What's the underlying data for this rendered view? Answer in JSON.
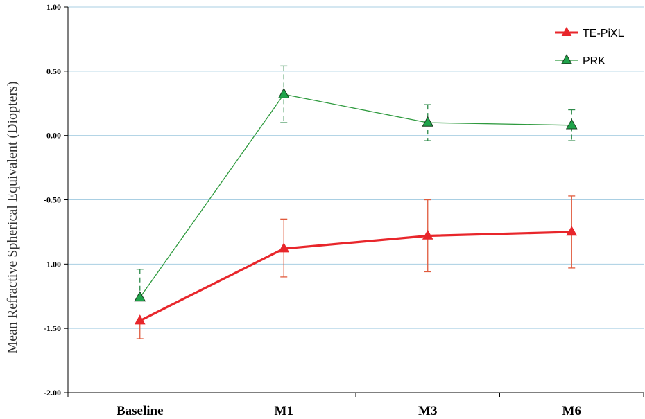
{
  "chart_data": {
    "type": "line",
    "categories": [
      "Baseline",
      "M1",
      "M3",
      "M6"
    ],
    "ylabel": "Mean Refractive Spherical Equivalent (Diopters)",
    "xlabel": "",
    "ylim": [
      -2.0,
      1.0
    ],
    "yticks": [
      1.0,
      0.5,
      0.0,
      -0.5,
      -1.0,
      -1.5,
      -2.0
    ],
    "ytick_labels": [
      "1.00",
      "0.50",
      "0.00",
      "-0.50",
      "-1.00",
      "-1.50",
      "-2.00"
    ],
    "grid": "horizontal",
    "legend_position": "top-right",
    "series": [
      {
        "name": "TE-PiXL",
        "color": "#e8262b",
        "marker": "triangle",
        "error_style": "solid",
        "values": [
          -1.44,
          -0.88,
          -0.78,
          -0.75
        ],
        "err_low": [
          -1.58,
          -1.1,
          -1.06,
          -1.03
        ],
        "err_high": [
          -1.44,
          -0.65,
          -0.5,
          -0.47
        ]
      },
      {
        "name": "PRK",
        "color": "#1fa34a",
        "line_color": "#2e9a3e",
        "marker": "triangle",
        "error_style": "dashed",
        "values": [
          -1.26,
          0.32,
          0.1,
          0.08
        ],
        "err_low": [
          -1.26,
          0.1,
          -0.04,
          -0.04
        ],
        "err_high": [
          -1.04,
          0.54,
          0.24,
          0.2
        ]
      }
    ]
  }
}
